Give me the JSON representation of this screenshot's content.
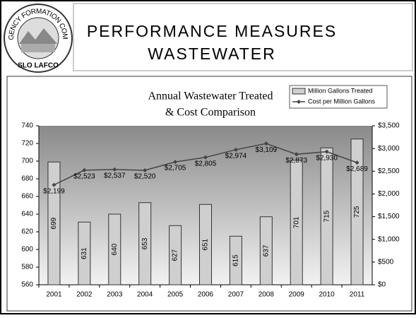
{
  "header": {
    "logo_text": [
      "LOCAL AGENCY FORMATION COMMISSION",
      "SLO LAFCO"
    ],
    "title": [
      "PERFORMANCE MEASURES",
      "WASTEWATER"
    ]
  },
  "chart_data": {
    "type": "bar",
    "title": "Annual Wastewater Treated",
    "subtitle": "& Cost Comparison",
    "categories": [
      "2001",
      "2002",
      "2003",
      "2004",
      "2005",
      "2006",
      "2007",
      "2008",
      "2009",
      "2010",
      "2011"
    ],
    "series": [
      {
        "name": "Million Gallons Treated",
        "color": "#cfcfcf",
        "values": [
          699,
          631,
          640,
          653,
          627,
          651,
          615,
          637,
          701,
          715,
          725
        ]
      },
      {
        "name": "Cost per Million Gallons",
        "type": "line",
        "axis": "y2",
        "color": "#444444",
        "values": [
          2199,
          2523,
          2537,
          2520,
          2705,
          2805,
          2974,
          3109,
          2873,
          2930,
          2689
        ],
        "value_labels": [
          "$2,199",
          "$2,523",
          "$2,537",
          "$2,520",
          "$2,705",
          "$2,805",
          "$2,974",
          "$3,109",
          "$2,873",
          "$2,930",
          "$2,689"
        ]
      }
    ],
    "ylim": [
      560,
      740
    ],
    "yticks": [
      560,
      580,
      600,
      620,
      640,
      660,
      680,
      700,
      720,
      740
    ],
    "y2lim": [
      0,
      3500
    ],
    "y2ticks": [
      {
        "value": 0,
        "label": "$0"
      },
      {
        "value": 500,
        "label": "$500"
      },
      {
        "value": 1000,
        "label": "$1,000"
      },
      {
        "value": 1500,
        "label": "$1,500"
      },
      {
        "value": 2000,
        "label": "$2,000"
      },
      {
        "value": 2500,
        "label": "$2,500"
      },
      {
        "value": 3000,
        "label": "$3,000"
      },
      {
        "value": 3500,
        "label": "$3,500"
      }
    ],
    "legend": "top-right"
  }
}
